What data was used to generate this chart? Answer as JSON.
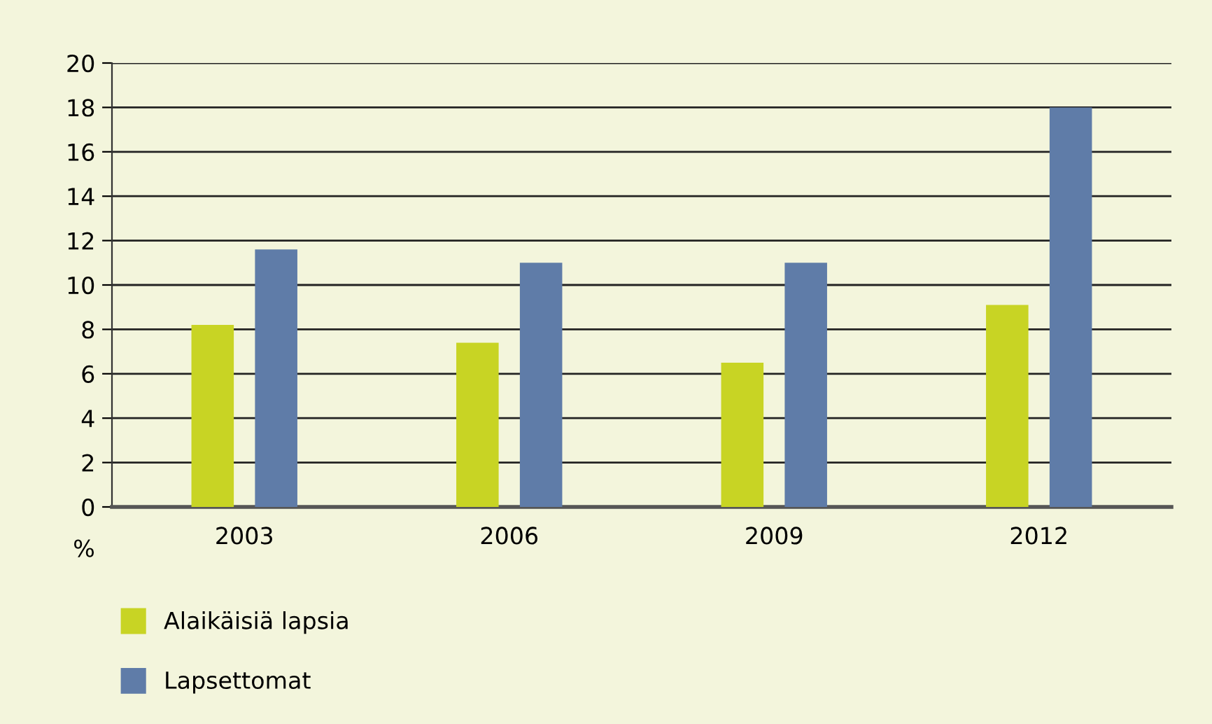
{
  "chart_data": {
    "type": "bar",
    "ylabel": "%",
    "categories": [
      "2003",
      "2006",
      "2009",
      "2012"
    ],
    "series": [
      {
        "name": "Alaikäisiä lapsia",
        "color": "#c8d424",
        "values": [
          8.2,
          7.4,
          6.5,
          9.1
        ]
      },
      {
        "name": "Lapsettomat",
        "color": "#5f7ca8",
        "values": [
          11.6,
          11.0,
          11.0,
          18.0
        ]
      }
    ],
    "ylim": [
      0,
      20
    ],
    "yticks": [
      0,
      2,
      4,
      6,
      8,
      10,
      12,
      14,
      16,
      18,
      20
    ],
    "grid": "y",
    "legend": "bottom left"
  }
}
